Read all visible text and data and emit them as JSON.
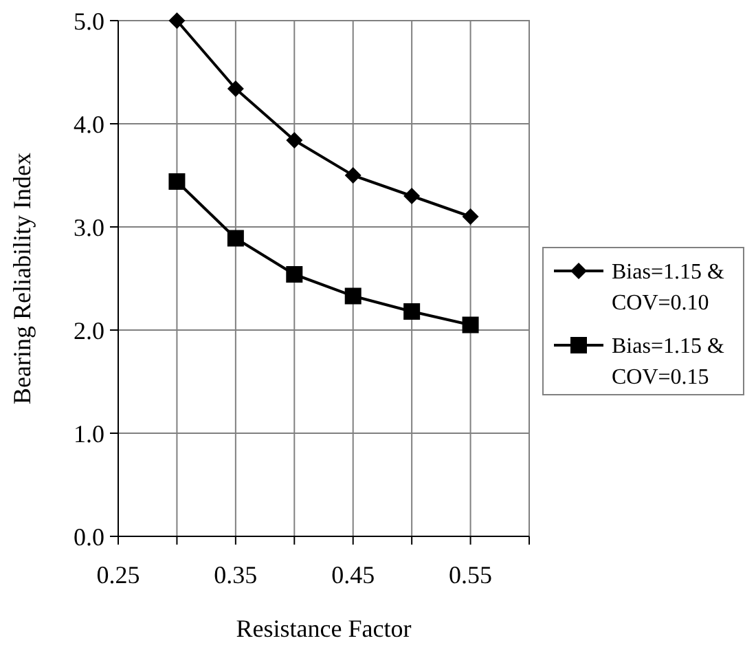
{
  "chart_data": {
    "type": "line",
    "xlabel": "Resistance Factor",
    "ylabel": "Bearing Reliability Index",
    "x": [
      0.3,
      0.35,
      0.4,
      0.45,
      0.5,
      0.55
    ],
    "series": [
      {
        "name": "Bias=1.15 & COV=0.10",
        "color": "#000000",
        "marker": "diamond",
        "values": [
          5.0,
          4.34,
          3.84,
          3.5,
          3.3,
          3.1
        ]
      },
      {
        "name": "Bias=1.15 & COV=0.15",
        "color": "#000000",
        "marker": "square",
        "values": [
          3.44,
          2.89,
          2.54,
          2.33,
          2.18,
          2.05
        ]
      }
    ],
    "xlim": [
      0.25,
      0.6
    ],
    "xticks": [
      0.25,
      {
        "value": 0.3,
        "label": null
      },
      0.35,
      {
        "value": 0.4,
        "label": null
      },
      0.45,
      {
        "value": 0.5,
        "label": null
      },
      0.55,
      {
        "value": 0.6,
        "label": null
      }
    ],
    "ylim": [
      0,
      5
    ],
    "yticks": [
      {
        "value": 0,
        "label": "0.0"
      },
      {
        "value": 1,
        "label": "1.0"
      },
      {
        "value": 2,
        "label": "2.0"
      },
      {
        "value": 3,
        "label": "3.0"
      },
      {
        "value": 4,
        "label": "4.0"
      },
      {
        "value": 5,
        "label": "5.0"
      }
    ],
    "grid": true,
    "legend": "right"
  }
}
